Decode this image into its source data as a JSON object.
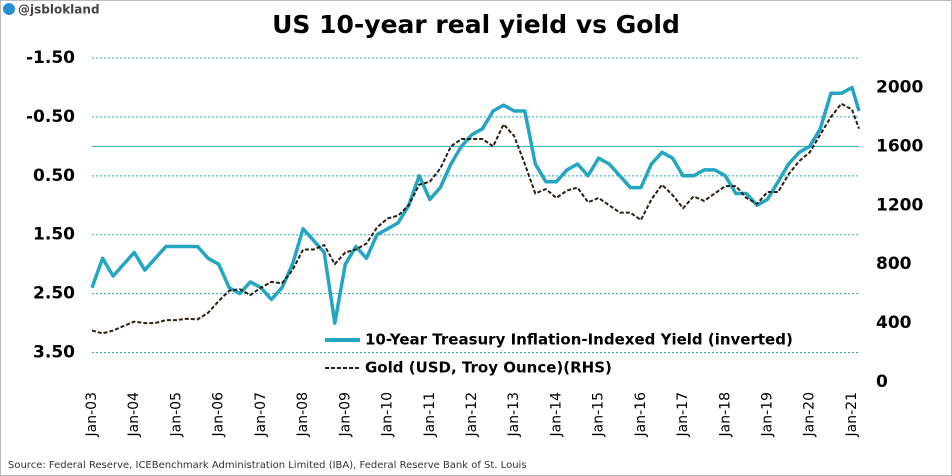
{
  "watermark": "@jsblokland",
  "source": "Source: Federal Reserve, ICEBenchmark Administration Limited (IBA), Federal Reserve Bank of St. Louis",
  "chart_data": {
    "type": "line",
    "title": "US 10-year real yield vs Gold",
    "x": [
      "2003-01",
      "2003-04",
      "2003-07",
      "2003-10",
      "2004-01",
      "2004-04",
      "2004-07",
      "2004-10",
      "2005-01",
      "2005-04",
      "2005-07",
      "2005-10",
      "2006-01",
      "2006-04",
      "2006-07",
      "2006-10",
      "2007-01",
      "2007-04",
      "2007-07",
      "2007-10",
      "2008-01",
      "2008-04",
      "2008-07",
      "2008-10",
      "2009-01",
      "2009-04",
      "2009-07",
      "2009-10",
      "2010-01",
      "2010-04",
      "2010-07",
      "2010-10",
      "2011-01",
      "2011-04",
      "2011-07",
      "2011-10",
      "2012-01",
      "2012-04",
      "2012-07",
      "2012-10",
      "2013-01",
      "2013-04",
      "2013-07",
      "2013-10",
      "2014-01",
      "2014-04",
      "2014-07",
      "2014-10",
      "2015-01",
      "2015-04",
      "2015-07",
      "2015-10",
      "2016-01",
      "2016-04",
      "2016-07",
      "2016-10",
      "2017-01",
      "2017-04",
      "2017-07",
      "2017-10",
      "2018-01",
      "2018-04",
      "2018-07",
      "2018-10",
      "2019-01",
      "2019-04",
      "2019-07",
      "2019-10",
      "2020-01",
      "2020-04",
      "2020-07",
      "2020-10",
      "2021-01",
      "2021-03"
    ],
    "xlim": [
      "2003-01",
      "2021-03"
    ],
    "xticks": [
      {
        "value": "2003-01",
        "label": "Jan-03"
      },
      {
        "value": "2004-01",
        "label": "Jan-04"
      },
      {
        "value": "2005-01",
        "label": "Jan-05"
      },
      {
        "value": "2006-01",
        "label": "Jan-06"
      },
      {
        "value": "2007-01",
        "label": "Jan-07"
      },
      {
        "value": "2008-01",
        "label": "Jan-08"
      },
      {
        "value": "2009-01",
        "label": "Jan-09"
      },
      {
        "value": "2010-01",
        "label": "Jan-10"
      },
      {
        "value": "2011-01",
        "label": "Jan-11"
      },
      {
        "value": "2012-01",
        "label": "Jan-12"
      },
      {
        "value": "2013-01",
        "label": "Jan-13"
      },
      {
        "value": "2014-01",
        "label": "Jan-14"
      },
      {
        "value": "2015-01",
        "label": "Jan-15"
      },
      {
        "value": "2016-01",
        "label": "Jan-16"
      },
      {
        "value": "2017-01",
        "label": "Jan-17"
      },
      {
        "value": "2018-01",
        "label": "Jan-18"
      },
      {
        "value": "2019-01",
        "label": "Jan-19"
      },
      {
        "value": "2020-01",
        "label": "Jan-20"
      },
      {
        "value": "2021-01",
        "label": "Jan-21"
      }
    ],
    "ylim": [
      -1.5,
      4.0
    ],
    "y_inverted": true,
    "yticks": [
      {
        "value": -1.5,
        "label": "-1.50"
      },
      {
        "value": -0.5,
        "label": "-0.50"
      },
      {
        "value": 0.5,
        "label": "0.50"
      },
      {
        "value": 1.5,
        "label": "1.50"
      },
      {
        "value": 2.5,
        "label": "2.50"
      },
      {
        "value": 3.5,
        "label": "3.50"
      }
    ],
    "y2lim": [
      0,
      2200
    ],
    "y2ticks": [
      0,
      400,
      800,
      1200,
      1600,
      2000
    ],
    "grid": true,
    "zero_line": true,
    "legend_loc": "lower center",
    "series": [
      {
        "name": "10-Year Treasury Inflation-Indexed Yield (inverted)",
        "color": "#24a6c2",
        "line_style": "solid",
        "axis": "y",
        "values": [
          2.4,
          1.9,
          2.2,
          2.0,
          1.8,
          2.1,
          1.9,
          1.7,
          1.7,
          1.7,
          1.7,
          1.9,
          2.0,
          2.4,
          2.5,
          2.3,
          2.4,
          2.6,
          2.4,
          2.0,
          1.4,
          1.6,
          1.8,
          3.0,
          2.0,
          1.7,
          1.9,
          1.5,
          1.4,
          1.3,
          1.0,
          0.5,
          0.9,
          0.7,
          0.3,
          0.0,
          -0.2,
          -0.3,
          -0.6,
          -0.7,
          -0.6,
          -0.6,
          0.3,
          0.6,
          0.6,
          0.4,
          0.3,
          0.5,
          0.2,
          0.3,
          0.5,
          0.7,
          0.7,
          0.3,
          0.1,
          0.2,
          0.5,
          0.5,
          0.4,
          0.4,
          0.5,
          0.8,
          0.8,
          1.0,
          0.9,
          0.6,
          0.3,
          0.1,
          0.0,
          -0.3,
          -0.9,
          -0.9,
          -1.0,
          -0.6
        ]
      },
      {
        "name": "Gold (USD, Troy Ounce)(RHS)",
        "color": "#2b2014",
        "line_style": "dashed",
        "axis": "y2",
        "values": [
          350,
          330,
          350,
          380,
          410,
          400,
          400,
          420,
          420,
          430,
          425,
          470,
          550,
          620,
          630,
          590,
          640,
          680,
          670,
          760,
          900,
          900,
          930,
          800,
          880,
          900,
          940,
          1050,
          1110,
          1130,
          1200,
          1340,
          1360,
          1450,
          1600,
          1650,
          1650,
          1650,
          1600,
          1750,
          1670,
          1480,
          1280,
          1310,
          1250,
          1300,
          1320,
          1220,
          1250,
          1200,
          1150,
          1150,
          1100,
          1240,
          1340,
          1270,
          1180,
          1260,
          1230,
          1280,
          1330,
          1330,
          1250,
          1210,
          1290,
          1290,
          1410,
          1500,
          1560,
          1680,
          1800,
          1890,
          1850,
          1720
        ]
      }
    ]
  }
}
